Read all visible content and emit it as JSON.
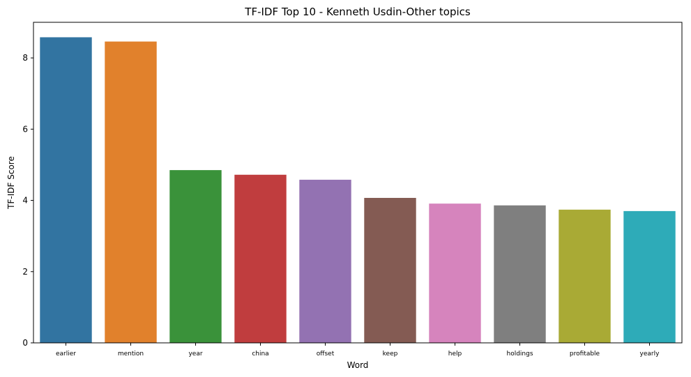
{
  "chart_data": {
    "type": "bar",
    "title": "TF-IDF Top 10 - Kenneth Usdin-Other topics",
    "xlabel": "Word",
    "ylabel": "TF-IDF Score",
    "categories": [
      "earlier",
      "mention",
      "year",
      "china",
      "offset",
      "keep",
      "help",
      "holdings",
      "profitable",
      "yearly"
    ],
    "values": [
      8.58,
      8.46,
      4.85,
      4.72,
      4.58,
      4.07,
      3.91,
      3.86,
      3.74,
      3.7
    ],
    "colors": [
      "#3274a1",
      "#e1812c",
      "#3a923a",
      "#c03d3e",
      "#9372b2",
      "#845b53",
      "#d684bd",
      "#7f7f7f",
      "#a9aa35",
      "#2eabb8"
    ],
    "ylim": [
      0,
      9.0
    ],
    "yticks": [
      0,
      2,
      4,
      6,
      8
    ],
    "grid": false,
    "legend": "none"
  }
}
